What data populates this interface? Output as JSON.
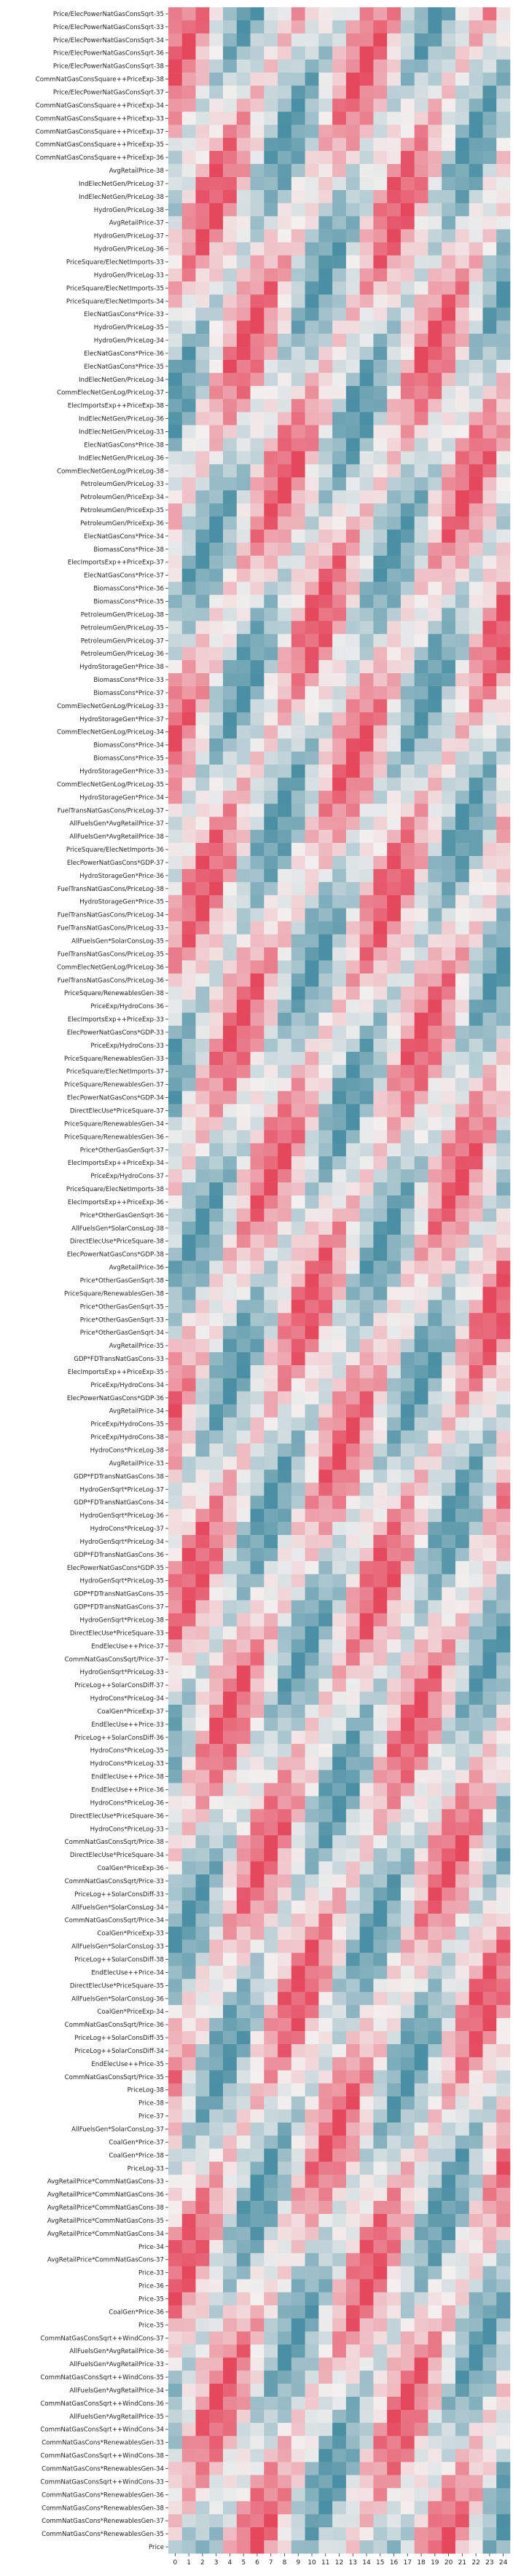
{
  "chart_data": {
    "type": "heatmap",
    "title": "",
    "xlabel": "",
    "ylabel": "",
    "x_categories": [
      "0",
      "1",
      "2",
      "3",
      "4",
      "5",
      "6",
      "7",
      "8",
      "9",
      "10",
      "11",
      "12",
      "13",
      "14",
      "15",
      "16",
      "17",
      "18",
      "19",
      "20",
      "21",
      "22",
      "23",
      "24"
    ],
    "y_categories": [
      "Price/ElecPowerNatGasConsSqrt-35",
      "Price/ElecPowerNatGasConsSqrt-33",
      "Price/ElecPowerNatGasConsSqrt-34",
      "Price/ElecPowerNatGasConsSqrt-36",
      "Price/ElecPowerNatGasConsSqrt-38",
      "CommNatGasConsSquare++PriceExp-38",
      "Price/ElecPowerNatGasConsSqrt-37",
      "CommNatGasConsSquare++PriceExp-34",
      "CommNatGasConsSquare++PriceExp-33",
      "CommNatGasConsSquare++PriceExp-37",
      "CommNatGasConsSquare++PriceExp-35",
      "CommNatGasConsSquare++PriceExp-36",
      "AvgRetailPrice-38",
      "IndElecNetGen/PriceLog-37",
      "IndElecNetGen/PriceLog-38",
      "HydroGen/PriceLog-38",
      "AvgRetailPrice-37",
      "HydroGen/PriceLog-37",
      "HydroGen/PriceLog-36",
      "PriceSquare/ElecNetImports-33",
      "HydroGen/PriceLog-33",
      "PriceSquare/ElecNetImports-35",
      "PriceSquare/ElecNetImports-34",
      "ElecNatGasCons*Price-33",
      "HydroGen/PriceLog-35",
      "HydroGen/PriceLog-34",
      "ElecNatGasCons*Price-36",
      "ElecNatGasCons*Price-35",
      "IndElecNetGen/PriceLog-34",
      "CommElecNetGenLog/PriceLog-37",
      "ElecImportsExp++PriceExp-38",
      "IndElecNetGen/PriceLog-36",
      "IndElecNetGen/PriceLog-33",
      "ElecNatGasCons*Price-38",
      "IndElecNetGen/PriceLog-36",
      "CommElecNetGenLog/PriceLog-38",
      "PetroleumGen/PriceLog-33",
      "PetroleumGen/PriceExp-34",
      "PetroleumGen/PriceExp-35",
      "PetroleumGen/PriceExp-36",
      "ElecNatGasCons*Price-34",
      "BiomassCons*Price-38",
      "ElecImportsExp++PriceExp-37",
      "ElecNatGasCons*Price-37",
      "BiomassCons*Price-36",
      "BiomassCons*Price-35",
      "PetroleumGen/PriceLog-38",
      "PetroleumGen/PriceLog-35",
      "PetroleumGen/PriceLog-37",
      "PetroleumGen/PriceLog-36",
      "HydroStorageGen*Price-38",
      "BiomassCons*Price-33",
      "BiomassCons*Price-37",
      "CommElecNetGenLog/PriceLog-33",
      "HydroStorageGen*Price-37",
      "CommElecNetGenLog/PriceLog-34",
      "BiomassCons*Price-34",
      "BiomassCons*Price-35",
      "HydroStorageGen*Price-33",
      "CommElecNetGenLog/PriceLog-35",
      "HydroStorageGen*Price-34",
      "FuelTransNatGasCons/PriceLog-37",
      "AllFuelsGen*AvgRetailPrice-37",
      "AllFuelsGen*AvgRetailPrice-38",
      "PriceSquare/ElecNetImports-36",
      "ElecPowerNatGasCons*GDP-37",
      "HydroStorageGen*Price-36",
      "FuelTransNatGasCons/PriceLog-38",
      "HydroStorageGen*Price-35",
      "FuelTransNatGasCons/PriceLog-34",
      "FuelTransNatGasCons/PriceLog-33",
      "AllFuelsGen*SolarConsLog-35",
      "FuelTransNatGasCons/PriceLog-35",
      "CommElecNetGenLog/PriceLog-36",
      "FuelTransNatGasCons/PriceLog-36",
      "PriceSquare/RenewablesGen-38",
      "PriceExp/HydroCons-36",
      "ElecImportsExp++PriceExp-33",
      "ElecPowerNatGasCons*GDP-33",
      "PriceExp/HydroCons-33",
      "PriceSquare/RenewablesGen-33",
      "PriceSquare/ElecNetImports-37",
      "PriceSquare/RenewablesGen-37",
      "ElecPowerNatGasCons*GDP-34",
      "DirectElecUse*PriceSquare-37",
      "PriceSquare/RenewablesGen-34",
      "PriceSquare/RenewablesGen-36",
      "Price*OtherGasGenSqrt-37",
      "ElecImportsExp++PriceExp-34",
      "PriceExp/HydroCons-37",
      "PriceSquare/ElecNetImports-38",
      "ElecImportsExp++PriceExp-36",
      "Price*OtherGasGenSqrt-36",
      "AllFuelsGen*SolarConsLog-38",
      "DirectElecUse*PriceSquare-38",
      "ElecPowerNatGasCons*GDP-38",
      "AvgRetailPrice-36",
      "Price*OtherGasGenSqrt-38",
      "PriceSquare/RenewablesGen-38",
      "Price*OtherGasGenSqrt-35",
      "Price*OtherGasGenSqrt-33",
      "Price*OtherGasGenSqrt-34",
      "AvgRetailPrice-35",
      "GDP*FDTransNatGasCons-33",
      "ElecImportsExp++PriceExp-35",
      "PriceExp/HydroCons-34",
      "ElecPowerNatGasCons*GDP-36",
      "AvgRetailPrice-34",
      "PriceExp/HydroCons-35",
      "PriceExp/HydroCons-38",
      "HydroCons*PriceLog-38",
      "AvgRetailPrice-33",
      "GDP*FDTransNatGasCons-38",
      "HydroGenSqrt*PriceLog-37",
      "GDP*FDTransNatGasCons-34",
      "HydroGenSqrt*PriceLog-36",
      "HydroCons*PriceLog-37",
      "HydroGenSqrt*PriceLog-34",
      "GDP*FDTransNatGasCons-36",
      "ElecPowerNatGasCons*GDP-35",
      "HydroGenSqrt*PriceLog-35",
      "GDP*FDTransNatGasCons-35",
      "GDP*FDTransNatGasCons-37",
      "HydroGenSqrt*PriceLog-38",
      "DirectElecUse*PriceSquare-33",
      "EndElecUse++Price-37",
      "CommNatGasConsSqrt/Price-37",
      "HydroGenSqrt*PriceLog-33",
      "PriceLog++SolarConsDiff-37",
      "HydroCons*PriceLog-34",
      "CoalGen*PriceExp-37",
      "EndElecUse++Price-33",
      "PriceLog++SolarConsDiff-36",
      "HydroCons*PriceLog-35",
      "HydroCons*PriceLog-33",
      "EndElecUse++Price-38",
      "EndElecUse++Price-36",
      "HydroCons*PriceLog-36",
      "DirectElecUse*PriceSquare-36",
      "HydroCons*PriceLog-33",
      "CommNatGasConsSqrt/Price-38",
      "DirectElecUse*PriceSquare-34",
      "CoalGen*PriceExp-36",
      "CommNatGasConsSqrt/Price-33",
      "PriceLog++SolarConsDiff-33",
      "AllFuelsGen*SolarConsLog-34",
      "CommNatGasConsSqrt/Price-34",
      "CoalGen*PriceExp-33",
      "AllFuelsGen*SolarConsLog-33",
      "PriceLog++SolarConsDiff-38",
      "EndElecUse++Price-34",
      "DirectElecUse*PriceSquare-35",
      "AllFuelsGen*SolarConsLog-36",
      "CoalGen*PriceExp-34",
      "CommNatGasConsSqrt/Price-36",
      "PriceLog++SolarConsDiff-35",
      "PriceLog++SolarConsDiff-34",
      "EndElecUse++Price-35",
      "CommNatGasConsSqrt/Price-35",
      "PriceLog-38",
      "Price-38",
      "Price-37",
      "AllFuelsGen*SolarConsLog-37",
      "CoalGen*Price-37",
      "CoalGen*Price-38",
      "PriceLog-33",
      "AvgRetailPrice*CommNatGasCons-33",
      "AvgRetailPrice*CommNatGasCons-36",
      "AvgRetailPrice*CommNatGasCons-38",
      "AvgRetailPrice*CommNatGasCons-35",
      "AvgRetailPrice*CommNatGasCons-34",
      "Price-34",
      "AvgRetailPrice*CommNatGasCons-37",
      "Price-33",
      "Price-36",
      "Price-35",
      "CoalGen*Price-36",
      "Price-35",
      "CommNatGasConsSqrt++WindCons-37",
      "AllFuelsGen*AvgRetailPrice-36",
      "AllFuelsGen*AvgRetailPrice-33",
      "CommNatGasConsSqrt++WindCons-35",
      "AllFuelsGen*AvgRetailPrice-34",
      "CommNatGasConsSqrt++WindCons-36",
      "AllFuelsGen*AvgRetailPrice-35",
      "CommNatGasConsSqrt++WindCons-34",
      "CommNatGasCons*RenewablesGen-33",
      "CommNatGasConsSqrt++WindCons-38",
      "CommNatGasCons*RenewablesGen-34",
      "CommNatGasConsSqrt++WindCons-33",
      "CommNatGasCons*RenewablesGen-36",
      "CommNatGasCons*RenewablesGen-38",
      "CommNatGasCons*RenewablesGen-37",
      "CommNatGasCons*RenewablesGen-35",
      "Price"
    ],
    "colormap": {
      "low": "#4a8fa3",
      "mid": "#f3f0ef",
      "high": "#e5475d"
    },
    "value_range": [
      -1,
      1
    ],
    "colorbar": false
  }
}
